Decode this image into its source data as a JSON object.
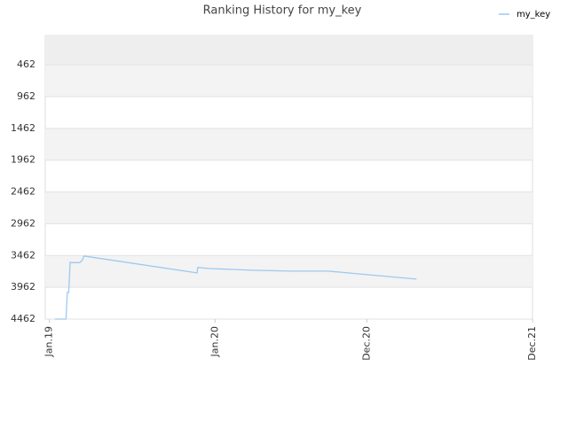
{
  "chart_data": {
    "type": "line",
    "title": "Ranking History for my_key",
    "x": [
      0.4,
      1.2,
      1.3,
      1.4,
      1.5,
      1.6,
      2.2,
      2.4,
      2.5,
      10.7,
      10.75,
      11.5,
      14.7,
      17.6,
      20.2,
      26.6
    ],
    "series": [
      {
        "name": "my_key",
        "color": "#9cc9f0",
        "values": [
          4462,
          4462,
          4042,
          4042,
          3570,
          3574,
          3574,
          3530,
          3470,
          3735,
          3650,
          3665,
          3693,
          3707,
          3707,
          3833
        ]
      }
    ],
    "xlim": [
      -0.3,
      35
    ],
    "xticks": [
      {
        "value": 0,
        "label": "Jan.19"
      },
      {
        "value": 12,
        "label": "Jan.20"
      },
      {
        "value": 23,
        "label": "Dec.20"
      },
      {
        "value": 35,
        "label": "Dec.21"
      }
    ],
    "ylim": [
      4462,
      0
    ],
    "yticks": [
      462,
      962,
      1462,
      1962,
      2462,
      2962,
      3462,
      3962,
      4462
    ],
    "legend": "top-right"
  }
}
